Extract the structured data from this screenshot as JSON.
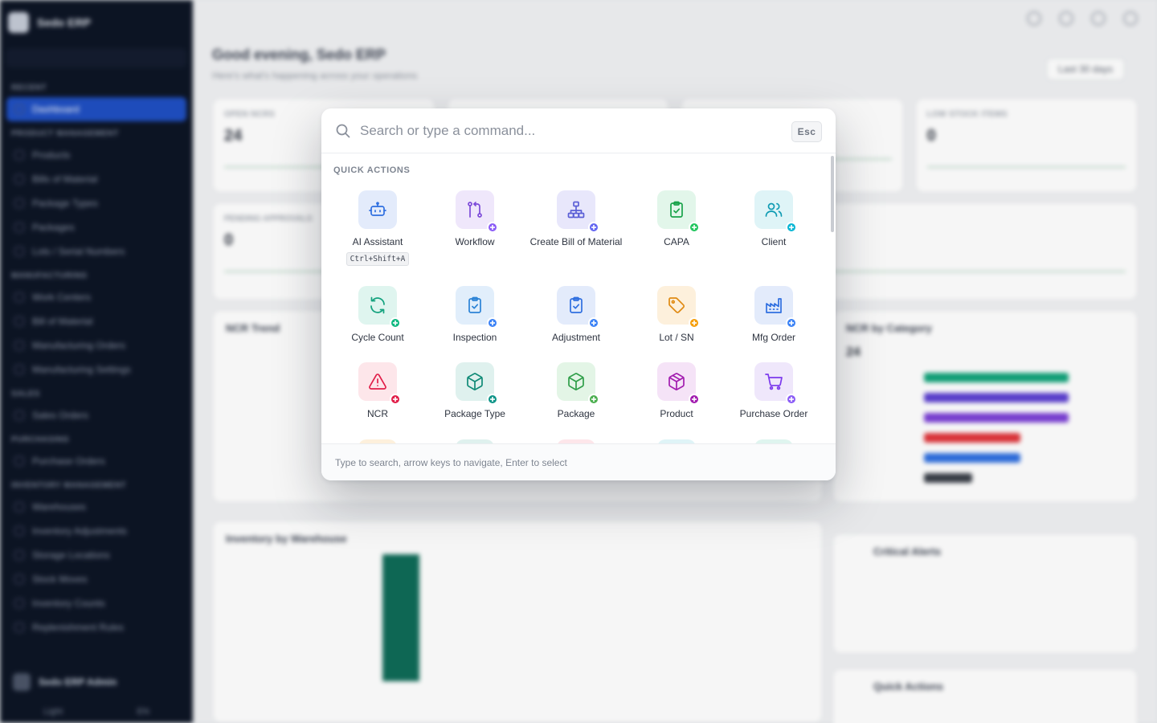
{
  "background": {
    "app_name": "Sedo ERP",
    "greeting": "Good evening, Sedo ERP",
    "greeting_sub": "Here's what's happening across your operations",
    "date_range": "Last 30 days",
    "sidebar": {
      "recent_label": "RECENT",
      "active_item": "Dashboard",
      "sections": [
        {
          "title": "PRODUCT MANAGEMENT",
          "items": [
            "Products",
            "Bills of Material",
            "Package Types",
            "Packages",
            "Lots / Serial Numbers"
          ]
        },
        {
          "title": "MANUFACTURING",
          "items": [
            "Work Centers",
            "Bill of Material",
            "Manufacturing Orders",
            "Manufacturing Settings"
          ]
        },
        {
          "title": "SALES",
          "items": [
            "Sales Orders"
          ]
        },
        {
          "title": "PURCHASING",
          "items": [
            "Purchase Orders"
          ]
        },
        {
          "title": "INVENTORY MANAGEMENT",
          "items": [
            "Warehouses",
            "Inventory Adjustments",
            "Storage Locations",
            "Stock Moves",
            "Inventory Counts",
            "Replenishment Rules"
          ]
        }
      ],
      "user": "Sedo ERP Admin",
      "footer_left": "Light",
      "footer_right": "EN"
    },
    "cards": [
      {
        "label": "OPEN NCRS",
        "value": "24"
      },
      {
        "label": "",
        "value": ""
      },
      {
        "label": "",
        "value": ""
      },
      {
        "label": "LOW STOCK ITEMS",
        "value": "0"
      }
    ],
    "card_row2_label": "PENDING APPROVALS",
    "card_row2_value": "0",
    "panels": {
      "ncr_trend": "NCR Trend",
      "ncr_by_category": "NCR by Category",
      "ncr_total": "24",
      "inventory_by_warehouse": "Inventory by Warehouse",
      "critical_alerts": "Critical Alerts",
      "quick_actions": "Quick Actions"
    }
  },
  "palette": {
    "search_placeholder": "Search or type a command...",
    "esc_label": "Esc",
    "section_title": "QUICK ACTIONS",
    "footer_hint": "Type to search, arrow keys to navigate, Enter to select",
    "actions": [
      {
        "label": "AI Assistant",
        "shortcut": "Ctrl+Shift+A",
        "icon": "bot-icon",
        "bg": "#e3ebfb",
        "fg": "#2f6fe0",
        "badge": null
      },
      {
        "label": "Workflow",
        "icon": "workflow-icon",
        "bg": "#efe7fb",
        "fg": "#7c4ad9",
        "badge": "#8b5cf6"
      },
      {
        "label": "Create Bill of Material",
        "icon": "hierarchy-icon",
        "bg": "#e8e7fb",
        "fg": "#5b5fd6",
        "badge": "#6366f1"
      },
      {
        "label": "CAPA",
        "icon": "clipboard-check-icon",
        "bg": "#e2f6ea",
        "fg": "#19a34a",
        "badge": "#22c55e"
      },
      {
        "label": "Client",
        "icon": "users-icon",
        "bg": "#dff4f7",
        "fg": "#0f9bb3",
        "badge": "#06b6d4"
      },
      {
        "label": "Cycle Count",
        "icon": "refresh-icon",
        "bg": "#dff5ef",
        "fg": "#14a37f",
        "badge": "#10b981"
      },
      {
        "label": "Inspection",
        "icon": "clipboard-check-icon",
        "bg": "#e1eefb",
        "fg": "#2b83d6",
        "badge": "#3b82f6"
      },
      {
        "label": "Adjustment",
        "icon": "clipboard-check-icon",
        "bg": "#e3ebfb",
        "fg": "#2f6fe0",
        "badge": "#3b82f6"
      },
      {
        "label": "Lot / SN",
        "icon": "tag-icon",
        "bg": "#fdf0dc",
        "fg": "#e08a12",
        "badge": "#f59e0b"
      },
      {
        "label": "Mfg Order",
        "icon": "factory-icon",
        "bg": "#e3ebfb",
        "fg": "#2f6fe0",
        "badge": "#3b82f6"
      },
      {
        "label": "NCR",
        "icon": "alert-triangle-icon",
        "bg": "#fde6ea",
        "fg": "#e11d48",
        "badge": "#e11d48"
      },
      {
        "label": "Package Type",
        "icon": "box-icon",
        "bg": "#dff1ee",
        "fg": "#0f8a76",
        "badge": "#0d9488"
      },
      {
        "label": "Package",
        "icon": "box-icon",
        "bg": "#e3f5e6",
        "fg": "#2e9e48",
        "badge": "#4caf50"
      },
      {
        "label": "Product",
        "icon": "cube-icon",
        "bg": "#f5e3f7",
        "fg": "#a21caf",
        "badge": "#a21caf"
      },
      {
        "label": "Purchase Order",
        "icon": "cart-icon",
        "bg": "#efe7fb",
        "fg": "#7c3aed",
        "badge": "#8b5cf6"
      }
    ]
  }
}
